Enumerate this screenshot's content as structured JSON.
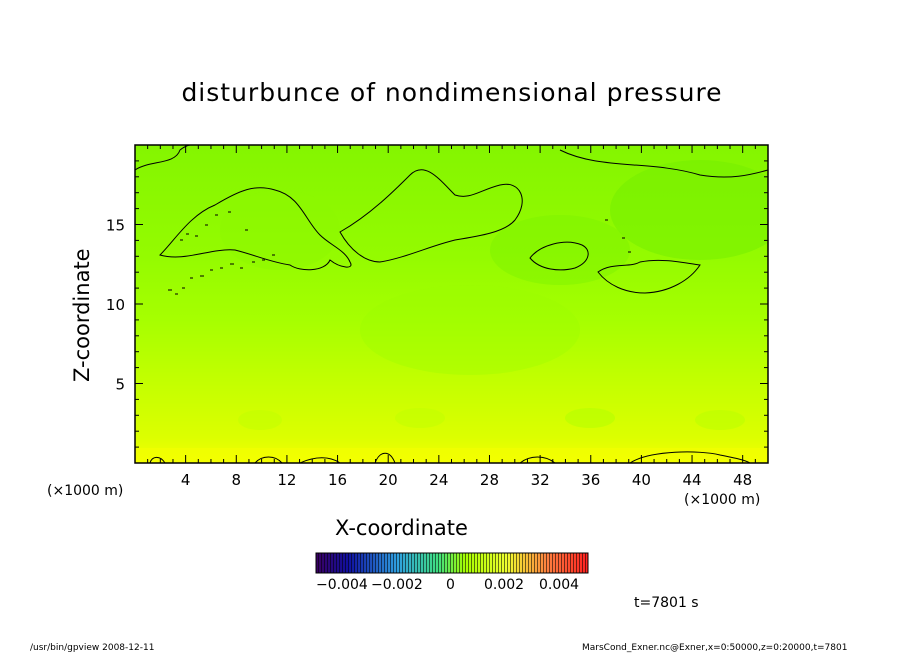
{
  "chart_data": {
    "type": "heatmap",
    "title": "disturbunce of nondimensional pressure",
    "xlabel": "X-coordinate",
    "ylabel": "Z-coordinate",
    "x_unit": "(×1000 m)",
    "z_unit": "(×1000 m)",
    "xlim": [
      0,
      50
    ],
    "ylim": [
      0,
      20
    ],
    "x_ticks": [
      4,
      8,
      12,
      16,
      20,
      24,
      28,
      32,
      36,
      40,
      44,
      48
    ],
    "y_ticks": [
      5,
      10,
      15
    ],
    "colorbar": {
      "range": [
        -0.005,
        0.005
      ],
      "tick_labels": [
        "−0.004",
        "−0.002",
        "0",
        "0.002",
        "0.004"
      ],
      "tick_values": [
        -0.004,
        -0.002,
        0,
        0.002,
        0.004
      ]
    },
    "field_description_levels": {
      "near_surface": 0.0025,
      "lower_layer": 0.0015,
      "mid_layer": 0.0008,
      "upper_layer": 0.0005
    },
    "time_label": "t=7801 s",
    "colors": {
      "yellow": "#f6ff00",
      "yellow_green": "#c8ff00",
      "green": "#7ef500",
      "contour": "#000000"
    }
  },
  "footer": {
    "left": "/usr/bin/gpview   2008-12-11",
    "right": "MarsCond_Exner.nc@Exner,x=0:50000,z=0:20000,t=7801"
  }
}
